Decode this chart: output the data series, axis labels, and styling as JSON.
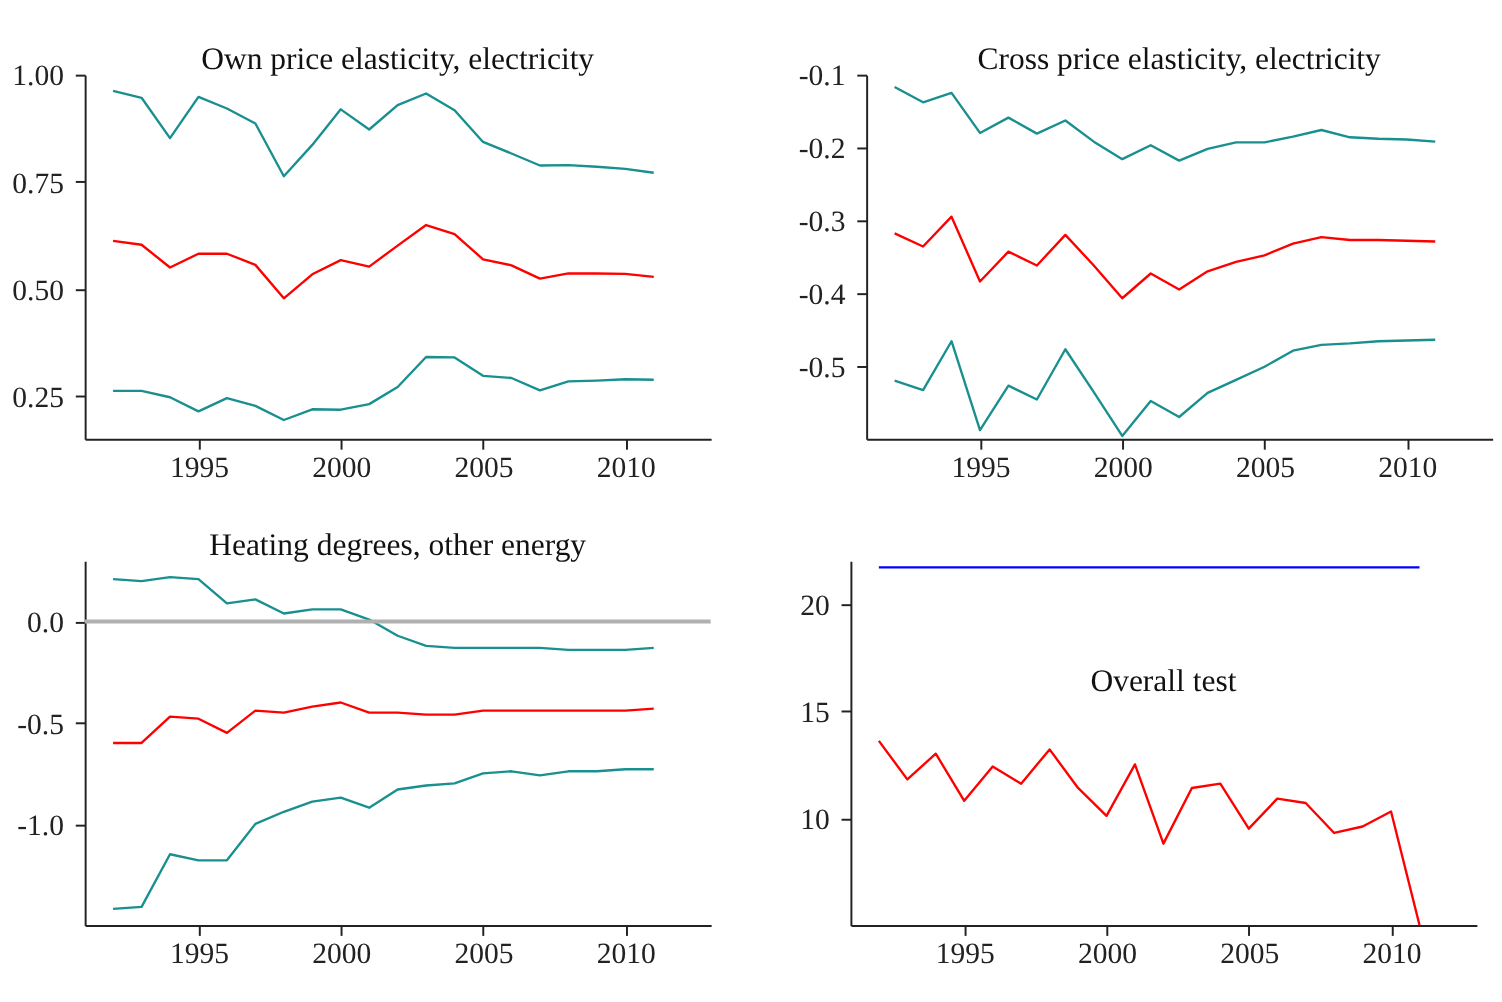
{
  "chart_data": [
    {
      "type": "line",
      "title": "Own price elasticity, electricity",
      "x": [
        1992,
        1993,
        1994,
        1995,
        1996,
        1997,
        1998,
        1999,
        2000,
        2001,
        2002,
        2003,
        2004,
        2005,
        2006,
        2007,
        2008,
        2009,
        2010,
        2011
      ],
      "series": [
        {
          "color": "#1a8f8f",
          "values": [
            0.962,
            0.946,
            0.852,
            0.948,
            0.921,
            0.886,
            0.763,
            0.836,
            0.919,
            0.872,
            0.929,
            0.956,
            0.917,
            0.843,
            0.816,
            0.788,
            0.789,
            0.785,
            0.78,
            0.771
          ]
        },
        {
          "color": "#ff0000",
          "values": [
            0.612,
            0.603,
            0.55,
            0.582,
            0.582,
            0.556,
            0.478,
            0.534,
            0.567,
            0.552,
            0.601,
            0.649,
            0.628,
            0.569,
            0.555,
            0.524,
            0.536,
            0.536,
            0.535,
            0.528
          ]
        },
        {
          "color": "#1a8f8f",
          "values": [
            0.262,
            0.262,
            0.247,
            0.214,
            0.245,
            0.227,
            0.194,
            0.219,
            0.218,
            0.231,
            0.271,
            0.341,
            0.34,
            0.297,
            0.292,
            0.263,
            0.284,
            0.286,
            0.289,
            0.288
          ]
        }
      ],
      "xlim": [
        1991,
        2013
      ],
      "xticks": [
        1995,
        2000,
        2005,
        2010
      ],
      "ylim": [
        0.15,
        1.0
      ],
      "yticks": [
        {
          "value": 0.25,
          "label": "0.25"
        },
        {
          "value": 0.5,
          "label": "0.50"
        },
        {
          "value": 0.75,
          "label": "0.75"
        },
        {
          "value": 1.0,
          "label": "1.00"
        }
      ],
      "grid": false
    },
    {
      "type": "line",
      "title": "Cross price elasticity, electricity",
      "x": [
        1992,
        1993,
        1994,
        1995,
        1996,
        1997,
        1998,
        1999,
        2000,
        2001,
        2002,
        2003,
        2004,
        2005,
        2006,
        2007,
        2008,
        2009,
        2010,
        2011
      ],
      "series": [
        {
          "color": "#1a8f8f",
          "values": [
            -0.117,
            -0.138,
            -0.125,
            -0.18,
            -0.159,
            -0.181,
            -0.163,
            -0.192,
            -0.216,
            -0.197,
            -0.218,
            -0.202,
            -0.193,
            -0.193,
            -0.185,
            -0.176,
            -0.186,
            -0.188,
            -0.189,
            -0.192
          ]
        },
        {
          "color": "#ff0000",
          "values": [
            -0.318,
            -0.336,
            -0.295,
            -0.384,
            -0.343,
            -0.362,
            -0.32,
            -0.362,
            -0.407,
            -0.373,
            -0.395,
            -0.37,
            -0.357,
            -0.348,
            -0.332,
            -0.323,
            -0.327,
            -0.327,
            -0.328,
            -0.329
          ]
        },
        {
          "color": "#1a8f8f",
          "values": [
            -0.52,
            -0.533,
            -0.466,
            -0.588,
            -0.527,
            -0.546,
            -0.477,
            -0.536,
            -0.596,
            -0.548,
            -0.57,
            -0.537,
            -0.519,
            -0.501,
            -0.479,
            -0.471,
            -0.469,
            -0.466,
            -0.465,
            -0.464
          ]
        }
      ],
      "xlim": [
        1991,
        2013
      ],
      "xticks": [
        1995,
        2000,
        2005,
        2010
      ],
      "ylim": [
        -0.6,
        -0.1
      ],
      "yticks": [
        -0.5,
        -0.4,
        -0.3,
        -0.2,
        -0.1
      ],
      "grid": false
    },
    {
      "type": "line",
      "title": "Heating degrees, other energy",
      "x": [
        1992,
        1993,
        1994,
        1995,
        1996,
        1997,
        1998,
        1999,
        2000,
        2001,
        2002,
        2003,
        2004,
        2005,
        2006,
        2007,
        2008,
        2009,
        2010,
        2011
      ],
      "series": [
        {
          "color": "#1a8f8f",
          "values": [
            0.21,
            0.2,
            0.22,
            0.21,
            0.09,
            0.11,
            0.04,
            0.06,
            0.06,
            0.01,
            -0.07,
            -0.12,
            -0.13,
            -0.13,
            -0.13,
            -0.13,
            -0.14,
            -0.14,
            -0.14,
            -0.13
          ]
        },
        {
          "color": "#ff0000",
          "values": [
            -0.6,
            -0.6,
            -0.47,
            -0.48,
            -0.55,
            -0.44,
            -0.45,
            -0.42,
            -0.4,
            -0.45,
            -0.45,
            -0.46,
            -0.46,
            -0.44,
            -0.44,
            -0.44,
            -0.44,
            -0.44,
            -0.44,
            -0.43
          ]
        },
        {
          "color": "#1a8f8f",
          "values": [
            -1.42,
            -1.41,
            -1.15,
            -1.18,
            -1.18,
            -1.0,
            -0.94,
            -0.89,
            -0.87,
            -0.92,
            -0.83,
            -0.81,
            -0.8,
            -0.75,
            -0.74,
            -0.76,
            -0.74,
            -0.74,
            -0.73,
            -0.73
          ]
        }
      ],
      "ref_lines": [
        {
          "axis": "y",
          "value": 0,
          "color": "#b0b0b0"
        }
      ],
      "xlim": [
        1991,
        2013
      ],
      "xticks": [
        1995,
        2000,
        2005,
        2010
      ],
      "ylim": [
        -1.5,
        0.3
      ],
      "yticks": [
        {
          "value": -1.0,
          "label": "-1.0"
        },
        {
          "value": -0.5,
          "label": "-0.5"
        },
        {
          "value": 0.0,
          "label": "0.0"
        }
      ],
      "grid": false
    },
    {
      "type": "line",
      "title": "Overall test",
      "x": [
        1992,
        1993,
        1994,
        1995,
        1996,
        1997,
        1998,
        1999,
        2000,
        2001,
        2002,
        2003,
        2004,
        2005,
        2006,
        2007,
        2008,
        2009,
        2010,
        2011
      ],
      "series": [
        {
          "color": "#0000ff",
          "values": [
            21.7,
            21.7,
            21.7,
            21.7,
            21.7,
            21.7,
            21.7,
            21.7,
            21.7,
            21.7,
            21.7,
            21.7,
            21.7,
            21.7,
            21.7,
            21.7,
            21.7,
            21.7,
            21.7,
            21.7
          ]
        },
        {
          "color": "#ff0000",
          "values": [
            13.6,
            11.8,
            13.0,
            10.8,
            12.4,
            11.6,
            13.2,
            11.4,
            10.1,
            12.5,
            8.8,
            11.4,
            11.6,
            9.5,
            10.9,
            10.7,
            9.3,
            9.6,
            10.3,
            5.0
          ]
        }
      ],
      "xlim": [
        1991,
        2013
      ],
      "xticks": [
        1995,
        2000,
        2005,
        2010
      ],
      "ylim": [
        5,
        22
      ],
      "yticks": [
        10,
        15,
        20
      ],
      "grid": false
    }
  ]
}
